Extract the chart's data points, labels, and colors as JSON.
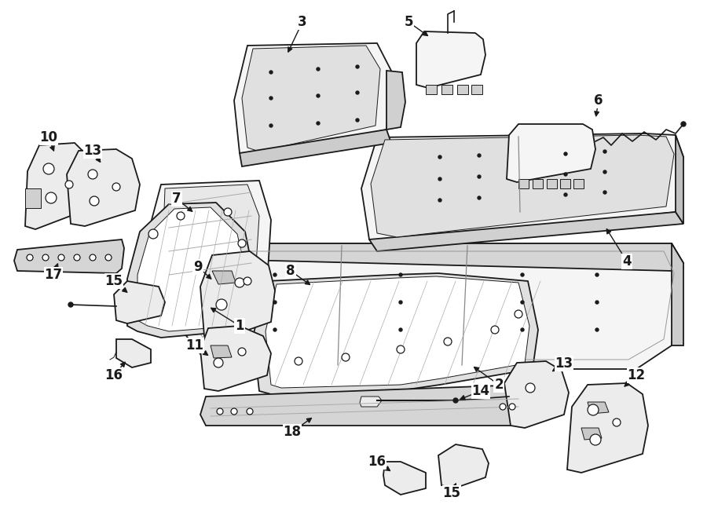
{
  "background_color": "#ffffff",
  "line_color": "#1a1a1a",
  "fig_width": 9.0,
  "fig_height": 6.61,
  "dpi": 100,
  "lw_main": 1.3,
  "lw_detail": 0.7,
  "fc_seat": "#f5f5f5",
  "fc_metal": "#ececec",
  "fc_white": "#ffffff"
}
